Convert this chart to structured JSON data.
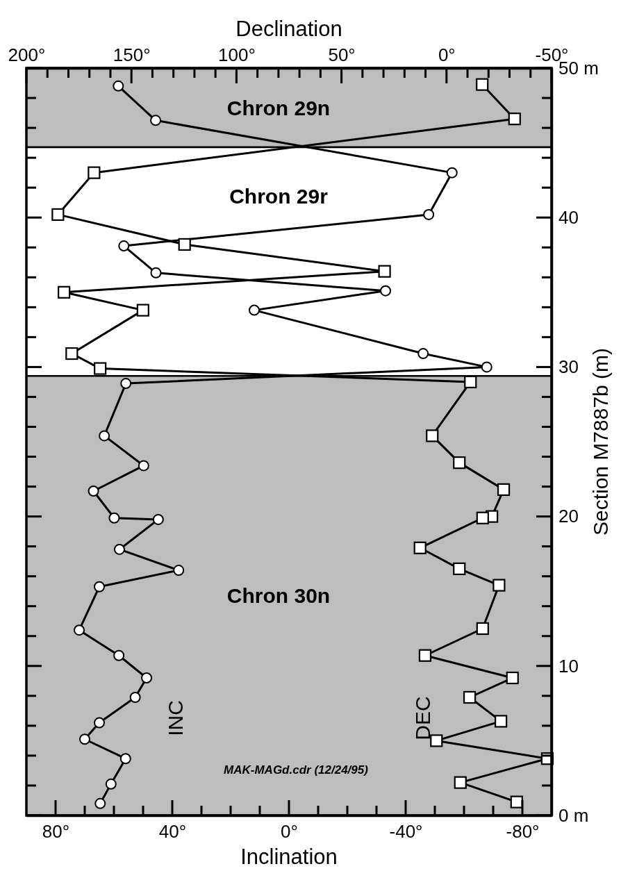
{
  "chart_data": {
    "type": "line",
    "xlabel": "Inclination",
    "x2label": "Declination",
    "ylabel": "Section M7887b (m)",
    "xlim": [
      90,
      -90
    ],
    "xticks": [
      {
        "value": 80,
        "label": "80°"
      },
      {
        "value": 70,
        "label": null
      },
      {
        "value": 60,
        "label": null
      },
      {
        "value": 50,
        "label": null
      },
      {
        "value": 40,
        "label": "40°"
      },
      {
        "value": 30,
        "label": null
      },
      {
        "value": 20,
        "label": null
      },
      {
        "value": 10,
        "label": null
      },
      {
        "value": 0,
        "label": "0°"
      },
      {
        "value": -10,
        "label": null
      },
      {
        "value": -20,
        "label": null
      },
      {
        "value": -30,
        "label": null
      },
      {
        "value": -40,
        "label": "-40°"
      },
      {
        "value": -50,
        "label": null
      },
      {
        "value": -60,
        "label": null
      },
      {
        "value": -70,
        "label": null
      },
      {
        "value": -80,
        "label": "-80°"
      }
    ],
    "x2lim": [
      200,
      -50
    ],
    "x2ticks": [
      {
        "value": 200,
        "label": "200°"
      },
      {
        "value": 190,
        "label": null
      },
      {
        "value": 180,
        "label": null
      },
      {
        "value": 170,
        "label": null
      },
      {
        "value": 160,
        "label": null
      },
      {
        "value": 150,
        "label": "150°"
      },
      {
        "value": 140,
        "label": null
      },
      {
        "value": 130,
        "label": null
      },
      {
        "value": 120,
        "label": null
      },
      {
        "value": 110,
        "label": null
      },
      {
        "value": 100,
        "label": "100°"
      },
      {
        "value": 90,
        "label": null
      },
      {
        "value": 80,
        "label": null
      },
      {
        "value": 70,
        "label": null
      },
      {
        "value": 60,
        "label": null
      },
      {
        "value": 50,
        "label": "50°"
      },
      {
        "value": 40,
        "label": null
      },
      {
        "value": 30,
        "label": null
      },
      {
        "value": 20,
        "label": null
      },
      {
        "value": 10,
        "label": null
      },
      {
        "value": 0,
        "label": "0°"
      },
      {
        "value": -10,
        "label": null
      },
      {
        "value": -20,
        "label": null
      },
      {
        "value": -30,
        "label": null
      },
      {
        "value": -40,
        "label": null
      },
      {
        "value": -50,
        "label": "-50°"
      }
    ],
    "ylim": [
      0,
      50
    ],
    "yticks": [
      {
        "value": 0,
        "label": "0 m"
      },
      {
        "value": 2,
        "label": null
      },
      {
        "value": 4,
        "label": null
      },
      {
        "value": 6,
        "label": null
      },
      {
        "value": 8,
        "label": null
      },
      10,
      {
        "value": 12,
        "label": null
      },
      {
        "value": 14,
        "label": null
      },
      {
        "value": 16,
        "label": null
      },
      {
        "value": 18,
        "label": null
      },
      20,
      {
        "value": 22,
        "label": null
      },
      {
        "value": 24,
        "label": null
      },
      {
        "value": 26,
        "label": null
      },
      {
        "value": 28,
        "label": null
      },
      30,
      {
        "value": 32,
        "label": null
      },
      {
        "value": 34,
        "label": null
      },
      {
        "value": 36,
        "label": null
      },
      {
        "value": 38,
        "label": null
      },
      40,
      {
        "value": 42,
        "label": null
      },
      {
        "value": 44,
        "label": null
      },
      {
        "value": 46,
        "label": null
      },
      {
        "value": 48,
        "label": null
      },
      {
        "value": 50,
        "label": "50 m"
      }
    ],
    "grid": false,
    "bands": [
      {
        "axis": "y",
        "from": 44.7,
        "to": 50,
        "label": "Chron 29n",
        "color": "#bdbdbd"
      },
      {
        "axis": "y",
        "from": 29.4,
        "to": 44.7,
        "label": "Chron 29r",
        "color": "#ffffff"
      },
      {
        "axis": "y",
        "from": 0,
        "to": 29.4,
        "label": "Chron 30n",
        "color": "#bdbdbd"
      }
    ],
    "annotations": [
      "MAK-MAGd.cdr (12/24/95)"
    ],
    "series": [
      {
        "name": "INC",
        "color": "#000000",
        "marker": "circle",
        "x": [
          58.5,
          45.7,
          -55.9,
          -47.9,
          56.6,
          45.6,
          -33.1,
          11.9,
          -46.0,
          -67.8,
          55.9,
          63.3,
          49.8,
          67.0,
          59.9,
          44.8,
          58.1,
          37.8,
          65.0,
          71.9,
          58.3,
          48.8,
          52.7,
          65.0,
          70.0,
          56.0,
          61.0,
          64.7
        ],
        "values": [
          48.8,
          46.5,
          43.0,
          40.2,
          38.1,
          36.3,
          35.1,
          33.8,
          30.9,
          30.0,
          28.9,
          25.4,
          23.4,
          21.7,
          19.9,
          19.8,
          17.8,
          16.4,
          15.3,
          12.4,
          10.7,
          9.2,
          7.9,
          6.2,
          5.1,
          3.8,
          2.1,
          0.8
        ]
      },
      {
        "name": "DEC",
        "color": "#000000",
        "marker": "square",
        "axis": "x2",
        "x": [
          -17.0,
          -32.4,
          167.8,
          185.0,
          124.7,
          29.5,
          182.1,
          144.5,
          178.4,
          164.9,
          -11.4,
          6.8,
          -6.1,
          -27.2,
          -21.6,
          -17.2,
          12.6,
          -6.1,
          -25.0,
          -17.2,
          10.2,
          -31.4,
          -11.0,
          -25.9,
          4.8,
          -48.0,
          -6.6,
          -33.4
        ],
        "values": [
          48.9,
          46.6,
          43.0,
          40.2,
          38.2,
          36.4,
          35.0,
          33.8,
          30.9,
          29.9,
          29.0,
          25.4,
          23.6,
          21.8,
          20.0,
          19.9,
          17.9,
          16.5,
          15.4,
          12.5,
          10.7,
          9.2,
          7.9,
          6.3,
          5.0,
          3.8,
          2.2,
          0.9
        ]
      }
    ]
  }
}
